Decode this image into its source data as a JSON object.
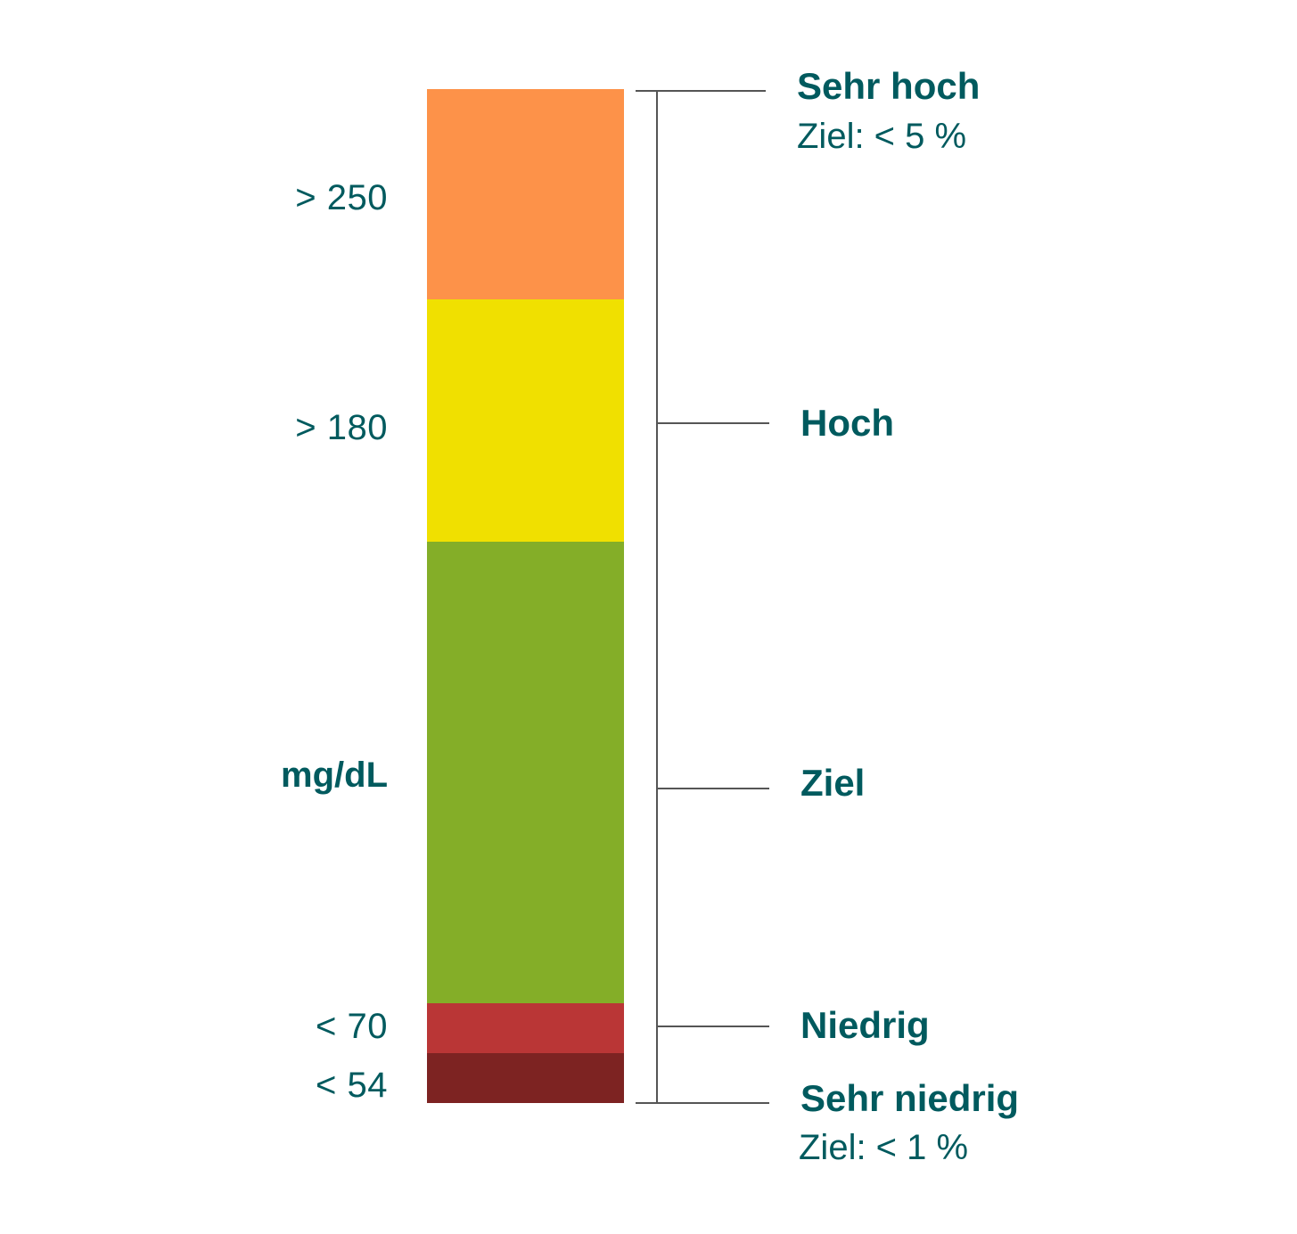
{
  "colors": {
    "very_high": "#fd9249",
    "high": "#f0e000",
    "target": "#84ae28",
    "low": "#ba3636",
    "very_low": "#7d2322",
    "text": "#005a5e",
    "line": "#555555"
  },
  "unit": "mg/dL",
  "thresholds": {
    "very_high": "> 250",
    "high": "> 180",
    "low": "< 70",
    "very_low": "< 54"
  },
  "ranges": {
    "very_high": {
      "label": "Sehr hoch",
      "target": "Ziel: < 5 %"
    },
    "high": {
      "label": "Hoch"
    },
    "target": {
      "label": "Ziel"
    },
    "low": {
      "label": "Niedrig"
    },
    "very_low": {
      "label": "Sehr niedrig",
      "target": "Ziel: < 1 %"
    }
  }
}
